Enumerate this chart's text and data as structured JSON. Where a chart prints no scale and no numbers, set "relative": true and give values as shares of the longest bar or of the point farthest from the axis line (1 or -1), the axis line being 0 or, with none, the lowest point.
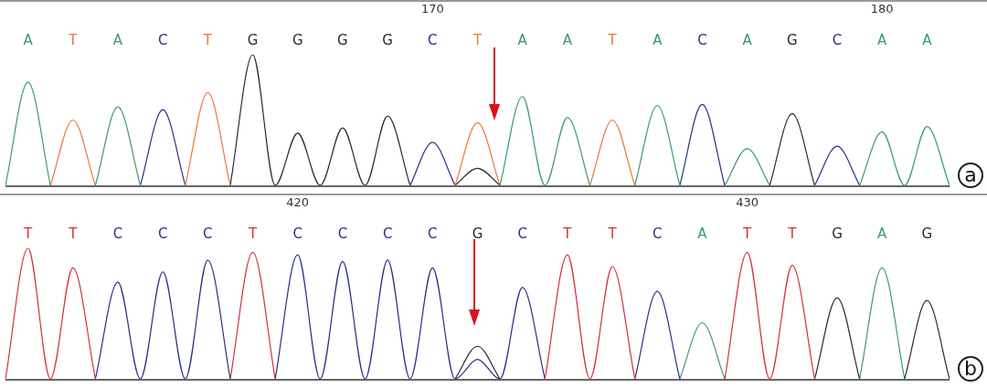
{
  "chart_data": [
    {
      "type": "line",
      "relative": true,
      "marker": "none",
      "line_style": "solid",
      "grid": false,
      "legend": false,
      "annotations": [
        "a"
      ],
      "categories": [
        null,
        "A",
        null,
        "T",
        null,
        "A",
        null,
        "C",
        null,
        "T",
        null,
        "G",
        null,
        "G",
        null,
        "G",
        null,
        "G",
        null,
        "C",
        null,
        "T",
        null,
        "A",
        null,
        "A",
        null,
        "T",
        null,
        "A",
        null,
        "C",
        null,
        "A",
        null,
        "G",
        null,
        "C",
        null,
        "A",
        null,
        "A",
        null
      ],
      "x2lim": [
        160.5,
        181.5
      ],
      "x2ticks": [
        170,
        180
      ],
      "series": [
        {
          "color": "#3a9a6e",
          "values": [
            0,
            0.79,
            0,
            null,
            0,
            0.6,
            0,
            null,
            null,
            null,
            null,
            null,
            null,
            null,
            null,
            null,
            null,
            null,
            null,
            null,
            null,
            null,
            0,
            0.68,
            0,
            0.52,
            0,
            null,
            0,
            0.61,
            0,
            null,
            0,
            0.28,
            0,
            null,
            null,
            null,
            0,
            0.41,
            0,
            0.45,
            0
          ]
        },
        {
          "color": "#e8773a",
          "values": [
            null,
            null,
            0,
            0.5,
            0,
            null,
            null,
            null,
            0,
            0.71,
            0,
            null,
            null,
            null,
            null,
            null,
            null,
            null,
            null,
            null,
            0,
            0.48,
            0,
            null,
            null,
            null,
            0,
            0.5,
            0,
            null,
            null,
            null,
            null,
            null,
            null,
            null,
            null,
            null,
            null,
            null,
            null,
            null,
            null
          ]
        },
        {
          "color": "#2c2f86",
          "values": [
            null,
            null,
            null,
            null,
            null,
            null,
            0,
            0.58,
            0,
            null,
            null,
            null,
            null,
            null,
            null,
            null,
            null,
            null,
            0,
            0.33,
            0,
            null,
            null,
            null,
            null,
            null,
            null,
            null,
            null,
            null,
            0,
            0.62,
            0,
            null,
            null,
            null,
            0,
            0.3,
            0,
            null,
            null,
            null,
            null
          ]
        },
        {
          "color": "#2a2a2a",
          "values": [
            null,
            null,
            null,
            null,
            null,
            null,
            null,
            null,
            null,
            null,
            0,
            1,
            0,
            0.4,
            0,
            0.44,
            0,
            0.53,
            0,
            null,
            0,
            0.13,
            0,
            null,
            null,
            null,
            null,
            null,
            null,
            null,
            null,
            null,
            null,
            null,
            0,
            0.55,
            0,
            null,
            null,
            null,
            null,
            null,
            null
          ]
        }
      ]
    },
    {
      "type": "line",
      "relative": true,
      "marker": "none",
      "line_style": "solid",
      "grid": false,
      "legend": false,
      "annotations": [
        "b"
      ],
      "categories": [
        null,
        "T",
        null,
        "T",
        null,
        "C",
        null,
        "C",
        null,
        "C",
        null,
        "T",
        null,
        "C",
        null,
        "C",
        null,
        "C",
        null,
        "C",
        null,
        "G",
        null,
        "C",
        null,
        "T",
        null,
        "T",
        null,
        "C",
        null,
        "A",
        null,
        "T",
        null,
        "T",
        null,
        "G",
        null,
        "A",
        null,
        "G",
        null
      ],
      "x2lim": [
        413.5,
        434.5
      ],
      "x2ticks": [
        420,
        430
      ],
      "series": [
        {
          "color": "#d2303a",
          "values": [
            0,
            1,
            0,
            0.85,
            0,
            null,
            null,
            null,
            null,
            null,
            0,
            0.97,
            0,
            null,
            null,
            null,
            null,
            null,
            null,
            null,
            null,
            null,
            null,
            null,
            0,
            0.95,
            0,
            0.86,
            0,
            null,
            null,
            null,
            0,
            0.97,
            0,
            0.87,
            0,
            null,
            null,
            null,
            null,
            null,
            null
          ]
        },
        {
          "color": "#2c2f86",
          "values": [
            null,
            null,
            null,
            null,
            0,
            0.74,
            0,
            0.82,
            0,
            0.91,
            0,
            null,
            0,
            0.95,
            0,
            0.9,
            0,
            0.91,
            0,
            0.85,
            0,
            0.15,
            0,
            0.7,
            0,
            null,
            null,
            null,
            0,
            0.67,
            0,
            null,
            null,
            null,
            null,
            null,
            null,
            null,
            null,
            null,
            null,
            null,
            null
          ]
        },
        {
          "color": "#2a2a2a",
          "values": [
            null,
            null,
            null,
            null,
            null,
            null,
            null,
            null,
            null,
            null,
            null,
            null,
            null,
            null,
            null,
            null,
            null,
            null,
            null,
            null,
            0,
            0.25,
            0,
            null,
            null,
            null,
            null,
            null,
            null,
            null,
            null,
            null,
            null,
            null,
            null,
            null,
            0,
            0.62,
            0,
            null,
            0,
            0.6,
            0
          ]
        },
        {
          "color": "#3a9a6e",
          "values": [
            null,
            null,
            null,
            null,
            null,
            null,
            null,
            null,
            null,
            null,
            null,
            null,
            null,
            null,
            null,
            null,
            null,
            null,
            null,
            null,
            null,
            null,
            null,
            null,
            null,
            null,
            null,
            null,
            null,
            null,
            0,
            0.43,
            0,
            null,
            null,
            null,
            null,
            null,
            0,
            0.85,
            0,
            null,
            null
          ]
        }
      ]
    }
  ]
}
